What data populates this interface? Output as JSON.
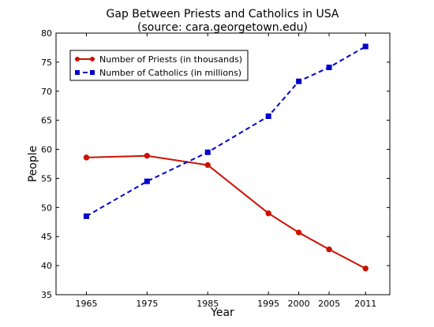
{
  "chart_data": {
    "type": "line",
    "title": "Gap Between Priests and Catholics in USA",
    "subtitle": "(source: cara.georgetown.edu)",
    "xlabel": "Year",
    "ylabel": "People",
    "xlim": [
      1960,
      2015
    ],
    "ylim": [
      35,
      80
    ],
    "x_ticks": [
      1965,
      1975,
      1985,
      1995,
      2000,
      2005,
      2011
    ],
    "y_ticks": [
      35,
      40,
      45,
      50,
      55,
      60,
      65,
      70,
      75,
      80
    ],
    "legend_position": "top-left",
    "grid": false,
    "series": [
      {
        "name": "Number of Priests (in thousands)",
        "color": "#cc1100",
        "line_style": "solid",
        "marker": "circle",
        "x": [
          1965,
          1975,
          1985,
          1995,
          2000,
          2005,
          2011
        ],
        "values": [
          58.6,
          58.9,
          57.3,
          49.0,
          45.7,
          42.8,
          39.5
        ]
      },
      {
        "name": "Number of Catholics (in millions)",
        "color": "#0000cc",
        "line_style": "dashed",
        "marker": "square",
        "x": [
          1965,
          1975,
          1985,
          1995,
          2000,
          2005,
          2011
        ],
        "values": [
          48.5,
          54.5,
          59.5,
          65.7,
          71.7,
          74.1,
          77.7
        ]
      }
    ]
  }
}
